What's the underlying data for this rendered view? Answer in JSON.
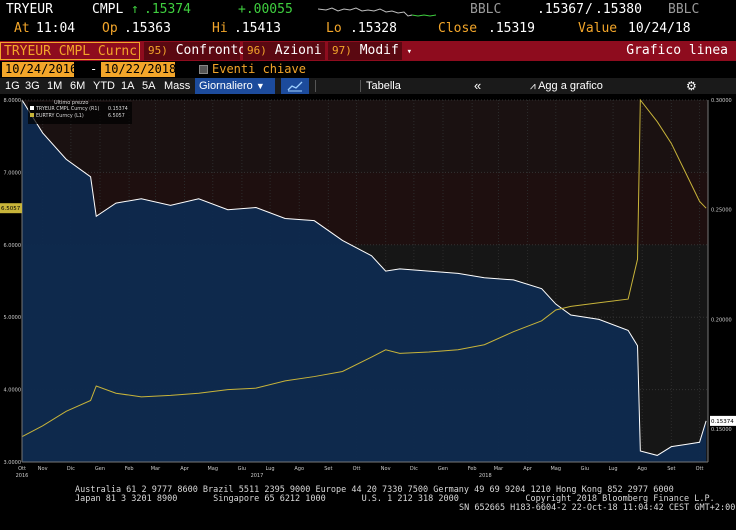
{
  "quote": {
    "ticker": "TRYEUR",
    "source": "CMPL",
    "arrow": "↑",
    "last": ".15374",
    "change": "+.00055",
    "bid_source": "BBLC",
    "bid": ".15367",
    "bid_ask_sep": "/",
    "ask": ".15380",
    "ask_source": "BBLC",
    "at_label": "At",
    "at_time": "11:04",
    "op_label": "Op",
    "open": ".15363",
    "hi_label": "Hi",
    "high": ".15413",
    "lo_label": "Lo",
    "low": ".15328",
    "close_label": "Close",
    "close": ".15319",
    "value_label": "Value",
    "value_date": "10/24/18"
  },
  "command_bar": {
    "security": "TRYEUR CMPL Curnc",
    "btn_compare_num": "95)",
    "btn_compare": "Confronto",
    "btn_actions_num": "96)",
    "btn_actions": "Azioni",
    "btn_edit_num": "97)",
    "btn_edit": "Modif",
    "view_title": "Grafico linea"
  },
  "dates": {
    "start": "10/24/2016",
    "sep": "-",
    "end": "10/22/2018",
    "key_events": "Eventi chiave"
  },
  "toolbar": {
    "periods": [
      "1G",
      "3G",
      "1M",
      "6M",
      "YTD",
      "1A",
      "5A",
      "Mass"
    ],
    "frequency": "Giornaliero",
    "table": "Tabella",
    "add_to_chart": "Agg a grafico"
  },
  "chart_data": {
    "type": "line",
    "legend_title": "Ultimo prezzo",
    "legend_placement": "top-left",
    "series": [
      {
        "name": "TRYEUR CMPL Curncy",
        "axis_tag": "(R1)",
        "last": "0.15374",
        "color": "#ffffff",
        "fill": "#0e2a4f",
        "axis": "right",
        "x": [
          "2016-10-24",
          "2016-11-15",
          "2016-12-10",
          "2017-01-05",
          "2017-01-11",
          "2017-02-01",
          "2017-02-28",
          "2017-03-31",
          "2017-04-30",
          "2017-05-31",
          "2017-06-30",
          "2017-07-31",
          "2017-08-31",
          "2017-09-30",
          "2017-10-31",
          "2017-11-15",
          "2017-11-30",
          "2017-12-31",
          "2018-01-31",
          "2018-02-28",
          "2018-03-31",
          "2018-04-30",
          "2018-05-15",
          "2018-05-31",
          "2018-06-30",
          "2018-07-31",
          "2018-08-10",
          "2018-08-13",
          "2018-08-31",
          "2018-09-15",
          "2018-09-30",
          "2018-10-15",
          "2018-10-22"
        ],
        "y": [
          0.3,
          0.285,
          0.273,
          0.265,
          0.247,
          0.253,
          0.255,
          0.252,
          0.255,
          0.25,
          0.251,
          0.246,
          0.245,
          0.236,
          0.229,
          0.222,
          0.223,
          0.222,
          0.221,
          0.219,
          0.218,
          0.214,
          0.207,
          0.202,
          0.2,
          0.195,
          0.188,
          0.14,
          0.138,
          0.142,
          0.143,
          0.144,
          0.15374
        ]
      },
      {
        "name": "EURTRY Curncy",
        "axis_tag": "(L1)",
        "last": "6.5057",
        "color": "#c8b43a",
        "axis": "left",
        "x": [
          "2016-10-24",
          "2016-11-15",
          "2016-12-10",
          "2017-01-05",
          "2017-01-11",
          "2017-02-01",
          "2017-02-28",
          "2017-03-31",
          "2017-04-30",
          "2017-05-31",
          "2017-06-30",
          "2017-07-31",
          "2017-08-31",
          "2017-09-30",
          "2017-10-31",
          "2017-11-15",
          "2017-11-30",
          "2017-12-31",
          "2018-01-31",
          "2018-02-28",
          "2018-03-31",
          "2018-04-30",
          "2018-05-15",
          "2018-05-31",
          "2018-06-30",
          "2018-07-31",
          "2018-08-10",
          "2018-08-13",
          "2018-08-31",
          "2018-09-15",
          "2018-09-30",
          "2018-10-15",
          "2018-10-22"
        ],
        "y": [
          3.35,
          3.5,
          3.7,
          3.85,
          4.05,
          3.95,
          3.9,
          3.92,
          3.95,
          4.0,
          4.02,
          4.12,
          4.18,
          4.25,
          4.45,
          4.55,
          4.5,
          4.52,
          4.55,
          4.62,
          4.8,
          4.95,
          5.1,
          5.15,
          5.2,
          5.25,
          5.8,
          8.0,
          7.7,
          7.4,
          7.0,
          6.6,
          6.5057
        ]
      }
    ],
    "y_left": {
      "min": 3.0,
      "max": 8.0,
      "ticks": [
        "3.0000",
        "4.0000",
        "5.0000",
        "6.0000",
        "7.0000",
        "8.0000"
      ],
      "current_label": "6.5057"
    },
    "y_right": {
      "min": 0.135,
      "max": 0.3,
      "ticks": [
        "0.15000",
        "0.20000",
        "0.25000",
        "0.30000"
      ],
      "current_label": "0.15374"
    },
    "x_ticks": [
      {
        "label": "Ott",
        "d": "2016-10-24"
      },
      {
        "label": "Nov",
        "d": "2016-11-15"
      },
      {
        "label": "Dic",
        "d": "2016-12-15"
      },
      {
        "label": "Gen",
        "d": "2017-01-15"
      },
      {
        "label": "Feb",
        "d": "2017-02-15"
      },
      {
        "label": "Mar",
        "d": "2017-03-15"
      },
      {
        "label": "Apr",
        "d": "2017-04-15"
      },
      {
        "label": "Mag",
        "d": "2017-05-15"
      },
      {
        "label": "Giu",
        "d": "2017-06-15"
      },
      {
        "label": "Lug",
        "d": "2017-07-15"
      },
      {
        "label": "Ago",
        "d": "2017-08-15"
      },
      {
        "label": "Set",
        "d": "2017-09-15"
      },
      {
        "label": "Ott",
        "d": "2017-10-15"
      },
      {
        "label": "Nov",
        "d": "2017-11-15"
      },
      {
        "label": "Dic",
        "d": "2017-12-15"
      },
      {
        "label": "Gen",
        "d": "2018-01-15"
      },
      {
        "label": "Feb",
        "d": "2018-02-15"
      },
      {
        "label": "Mar",
        "d": "2018-03-15"
      },
      {
        "label": "Apr",
        "d": "2018-04-15"
      },
      {
        "label": "Mag",
        "d": "2018-05-15"
      },
      {
        "label": "Giu",
        "d": "2018-06-15"
      },
      {
        "label": "Lug",
        "d": "2018-07-15"
      },
      {
        "label": "Ago",
        "d": "2018-08-15"
      },
      {
        "label": "Set",
        "d": "2018-09-15"
      },
      {
        "label": "Ott",
        "d": "2018-10-15"
      }
    ],
    "year_labels": [
      {
        "label": "2016",
        "d": "2016-10-24"
      },
      {
        "label": "2017",
        "d": "2017-07-01"
      },
      {
        "label": "2018",
        "d": "2018-03-01"
      }
    ],
    "grid": true
  },
  "footer": {
    "line1": "Australia 61 2 9777 8600 Brazil 5511 2395 9000 Europe 44 20 7330 7500 Germany 49 69 9204 1210 Hong Kong 852 2977 6000",
    "line2": "Japan 81 3 3201 8900       Singapore 65 6212 1000       U.S. 1 212 318 2000             Copyright 2018 Bloomberg Finance L.P.",
    "line3": "SN 652665 H183-6604-2 22-Oct-18 11:04:42 CEST GMT+2:00"
  }
}
